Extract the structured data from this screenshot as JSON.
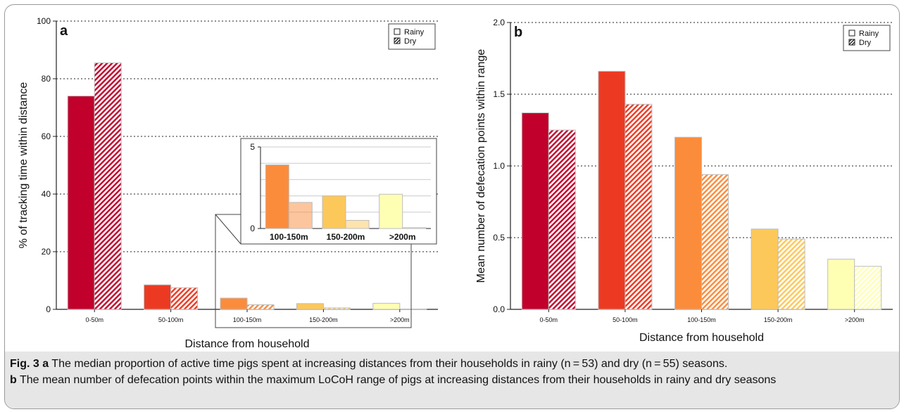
{
  "figure": {
    "caption_label": "Fig. 3",
    "caption_a_label": "a",
    "caption_a_text": " The median proportion of active time pigs spent at increasing distances from their households in rainy (n = 53) and dry (n = 55) seasons.",
    "caption_b_label": "b",
    "caption_b_text": " The mean number of defecation points within the maximum LoCoH range of pigs at increasing distances from their households in rainy and dry seasons"
  },
  "colors": {
    "0-50m": "#c1002b",
    "50-100m": "#ec3a22",
    "100-150m": "#fb8c3c",
    "150-200m": "#fdc85a",
    ">200m": "#ffffb4"
  },
  "chart_data": [
    {
      "type": "bar",
      "panel_label": "a",
      "xlabel": "Distance from household",
      "ylabel": "% of tracking time within distance",
      "categories": [
        "0-50m",
        "50-100m",
        "100-150m",
        "150-200m",
        ">200m"
      ],
      "series": [
        {
          "name": "Rainy",
          "pattern": "solid",
          "values": [
            74,
            8.5,
            3.9,
            2.0,
            2.1
          ]
        },
        {
          "name": "Dry",
          "pattern": "hatched",
          "values": [
            85.5,
            7.5,
            1.6,
            0.5,
            0.05
          ]
        }
      ],
      "ylim": [
        0,
        100
      ],
      "yticks": [
        "0",
        "20",
        "40",
        "60",
        "80",
        "100"
      ],
      "grid": "horizontal dotted",
      "legend": "top-right",
      "inset": {
        "categories": [
          "100-150m",
          "150-200m",
          ">200m"
        ],
        "series": [
          {
            "name": "Rainy",
            "values": [
              3.9,
              2.0,
              2.1
            ]
          },
          {
            "name": "Dry",
            "values": [
              1.6,
              0.5,
              0.05
            ]
          }
        ],
        "ylim": [
          0,
          5
        ],
        "yticks": [
          "0",
          "5"
        ]
      }
    },
    {
      "type": "bar",
      "panel_label": "b",
      "xlabel": "Distance from household",
      "ylabel": "Mean number of defecation points within range",
      "categories": [
        "0-50m",
        "50-100m",
        "100-150m",
        "150-200m",
        ">200m"
      ],
      "series": [
        {
          "name": "Rainy",
          "pattern": "solid",
          "values": [
            1.37,
            1.66,
            1.2,
            0.56,
            0.35
          ]
        },
        {
          "name": "Dry",
          "pattern": "hatched",
          "values": [
            1.25,
            1.43,
            0.94,
            0.49,
            0.3
          ]
        }
      ],
      "ylim": [
        0,
        2
      ],
      "yticks": [
        "0.0",
        "0.5",
        "1.0",
        "1.5",
        "2.0"
      ],
      "grid": "horizontal dotted",
      "legend": "top-right"
    }
  ]
}
